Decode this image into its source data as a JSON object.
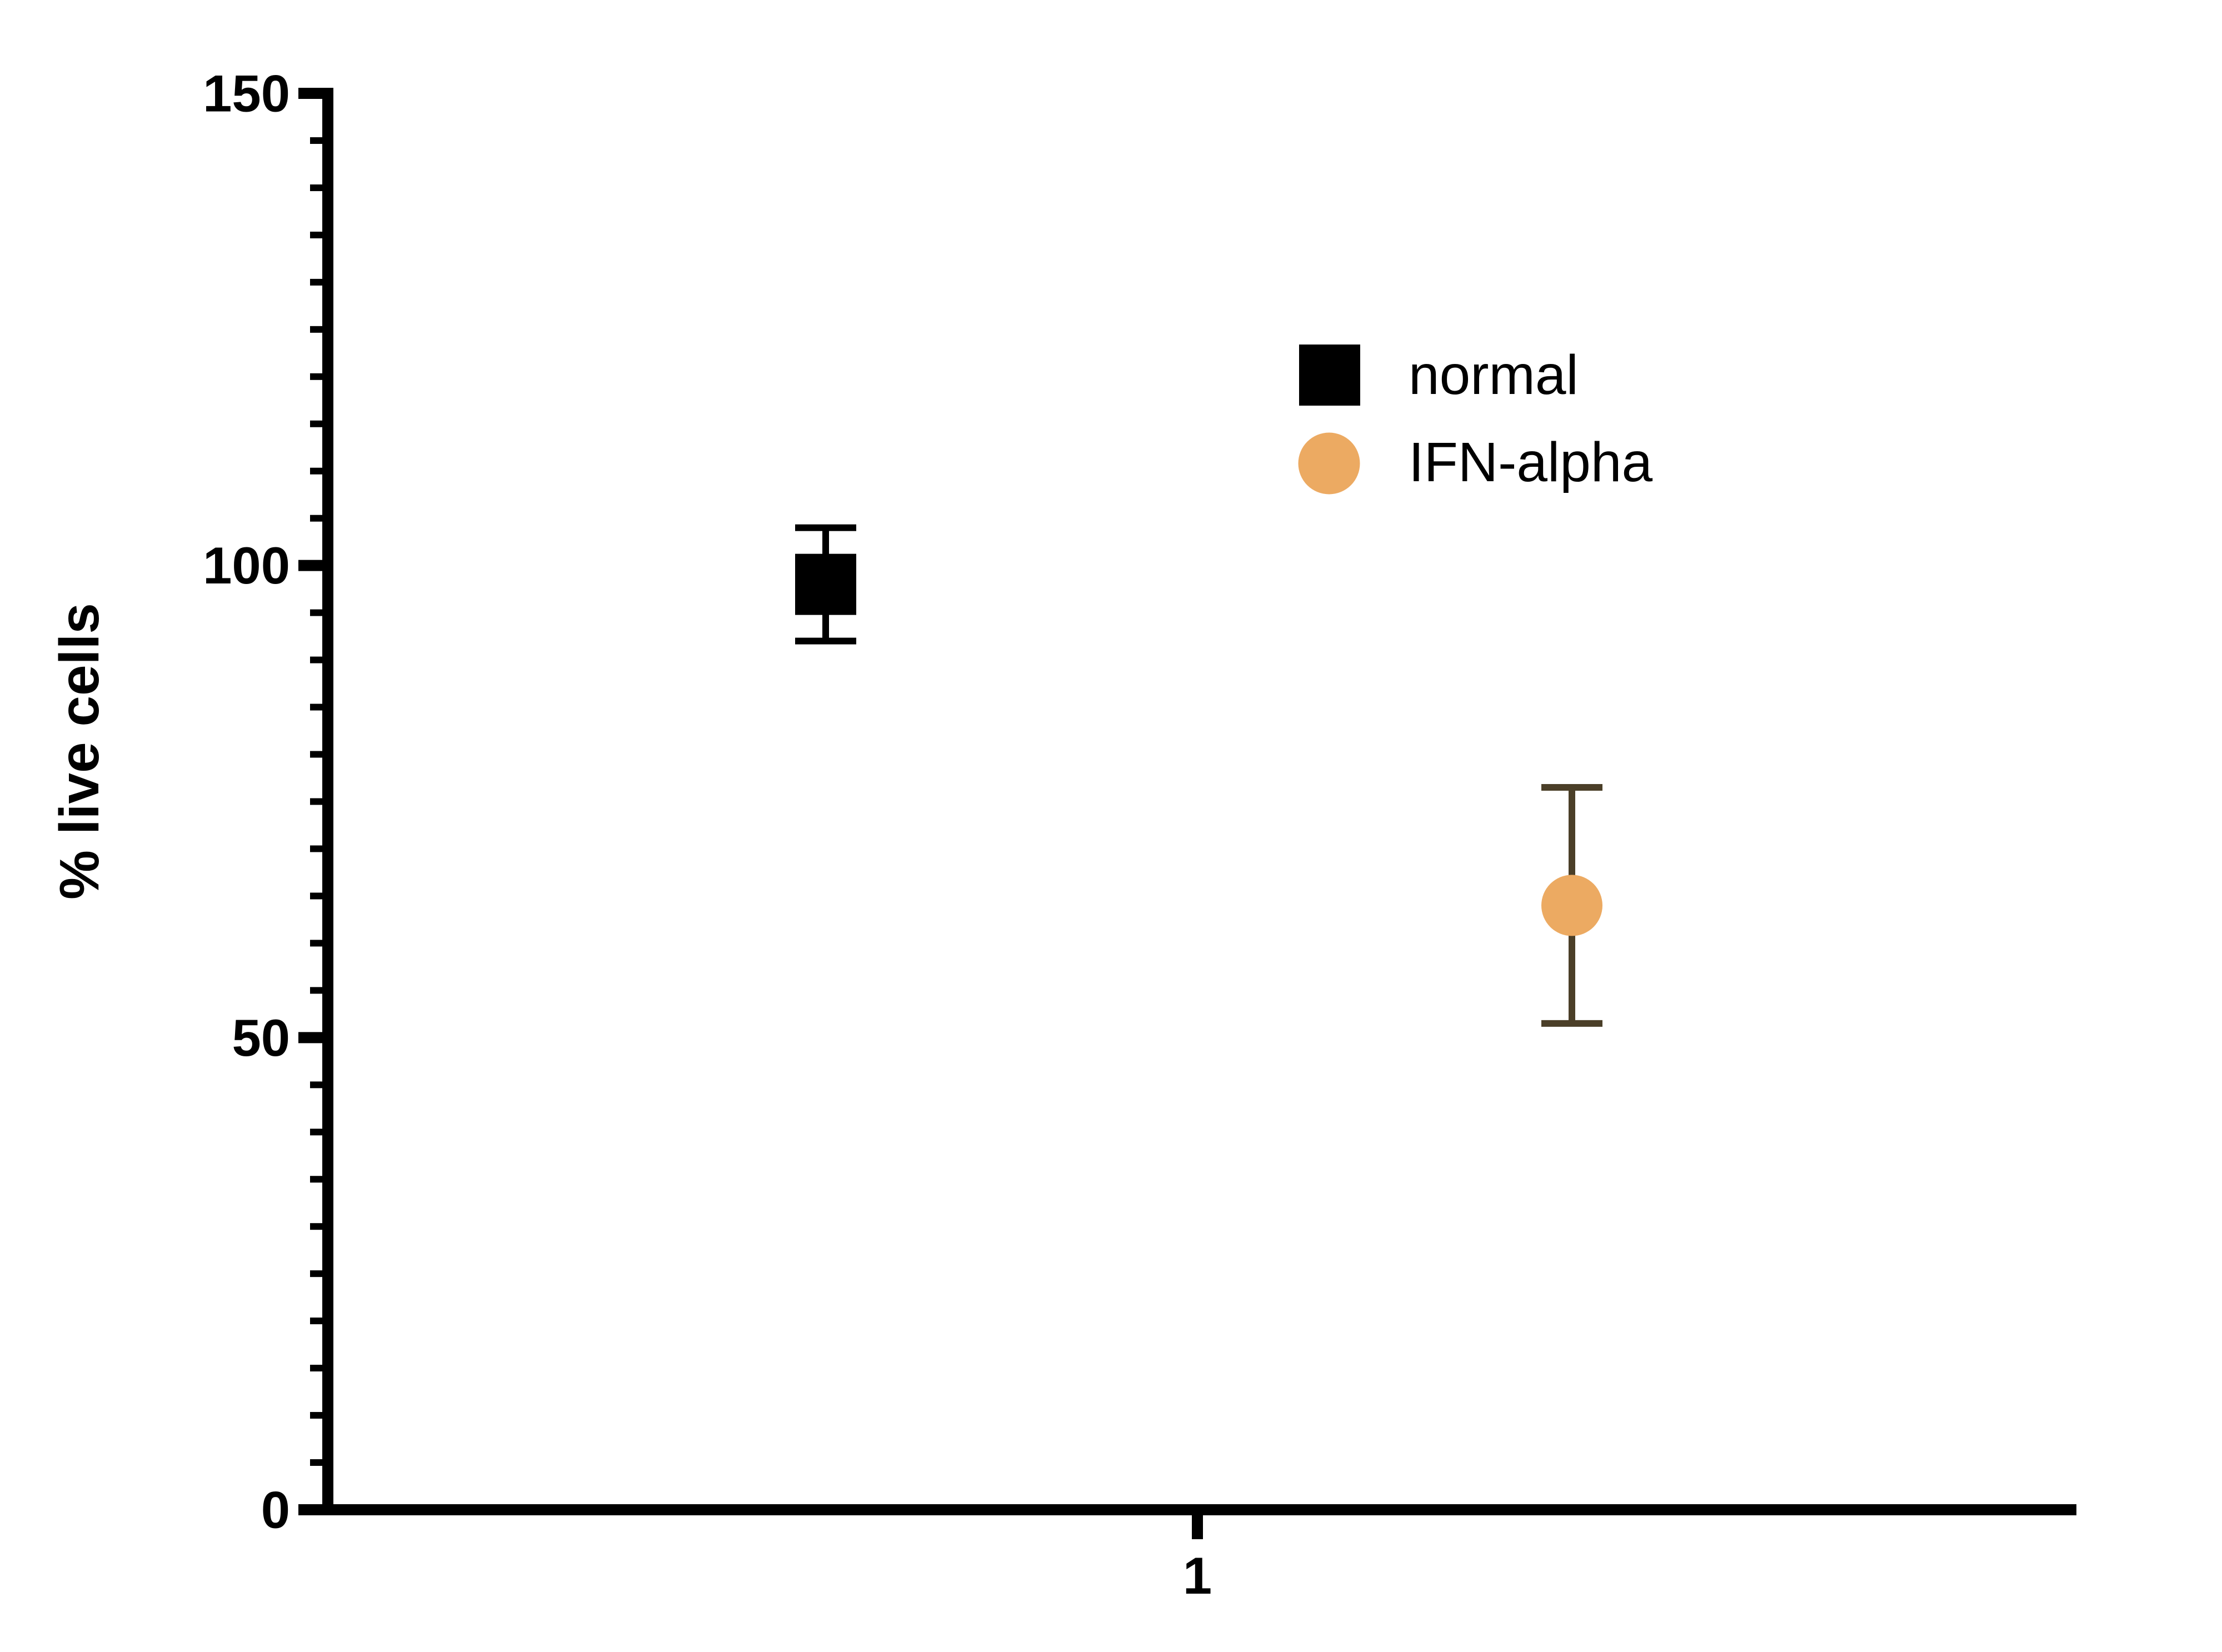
{
  "chart_data": {
    "type": "scatter",
    "title": "",
    "xlabel": "",
    "ylabel": "% live cells",
    "ylim": [
      0,
      150
    ],
    "yticks": [
      150,
      100,
      50,
      0
    ],
    "minor_tick_step": 5,
    "grid": false,
    "categories": [
      "1"
    ],
    "legend_position": "upper-right-inside",
    "series": [
      {
        "name": "normal",
        "marker": "square",
        "marker_color": "#000000",
        "error_bar_color": "#000000",
        "x_category": "1",
        "mean": 98,
        "error_plus": 6,
        "error_minus": 6
      },
      {
        "name": "IFN-alpha",
        "marker": "circle",
        "marker_color": "#ECAA62",
        "error_bar_color": "#4B3F28",
        "x_category": "1",
        "mean": 64,
        "error_plus": 12.5,
        "error_minus": 12.5
      }
    ]
  }
}
